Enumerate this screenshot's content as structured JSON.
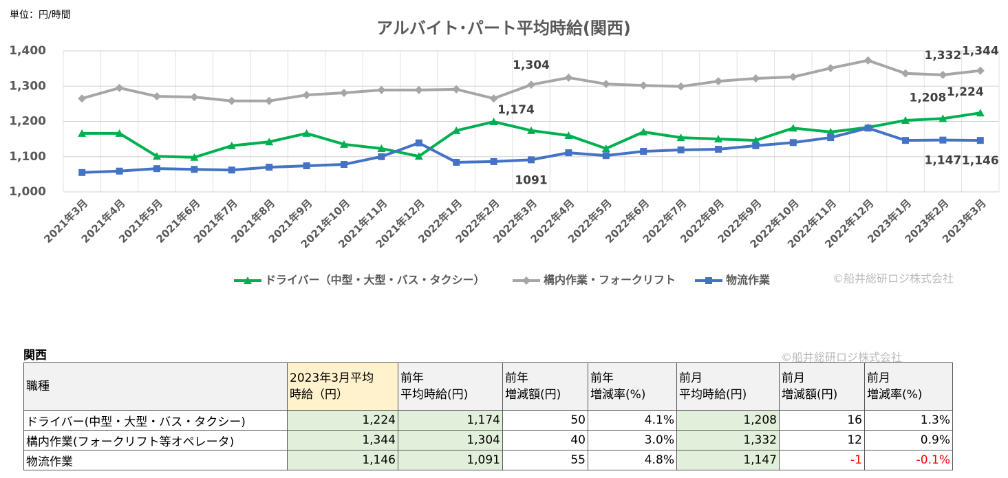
{
  "chart_data": {
    "type": "line",
    "title": "アルバイト･パート平均時給(関西)",
    "unit_note": "単位：円/時間",
    "credit": "©船井総研ロジ株式会社",
    "categories": [
      "2021年3月",
      "2021年4月",
      "2021年5月",
      "2021年6月",
      "2021年7月",
      "2021年8月",
      "2021年9月",
      "2021年10月",
      "2021年11月",
      "2021年12月",
      "2022年1月",
      "2022年2月",
      "2022年3月",
      "2022年4月",
      "2022年5月",
      "2022年6月",
      "2022年7月",
      "2022年8月",
      "2022年9月",
      "2022年10月",
      "2022年11月",
      "2022年12月",
      "2023年1月",
      "2023年2月",
      "2023年3月"
    ],
    "series": [
      {
        "name": "ドライバー（中型・大型・バス・タクシー）",
        "color": "#00b050",
        "marker": "triangle",
        "values": [
          1166,
          1166,
          1101,
          1098,
          1131,
          1142,
          1166,
          1135,
          1123,
          1101,
          1174,
          1199,
          1174,
          1160,
          1123,
          1170,
          1154,
          1150,
          1146,
          1181,
          1170,
          1183,
          1203,
          1208,
          1224
        ],
        "value_labels": [
          null,
          null,
          null,
          null,
          null,
          null,
          null,
          null,
          null,
          null,
          null,
          null,
          "1,174",
          null,
          null,
          null,
          null,
          null,
          null,
          null,
          null,
          null,
          null,
          "1,208",
          "1,224"
        ]
      },
      {
        "name": "構内作業・フォークリフト",
        "color": "#a6a6a6",
        "marker": "diamond",
        "values": [
          1265,
          1295,
          1271,
          1269,
          1258,
          1258,
          1275,
          1281,
          1289,
          1289,
          1291,
          1265,
          1304,
          1324,
          1306,
          1302,
          1299,
          1314,
          1322,
          1326,
          1351,
          1373,
          1336,
          1332,
          1344
        ],
        "value_labels": [
          null,
          null,
          null,
          null,
          null,
          null,
          null,
          null,
          null,
          null,
          null,
          null,
          "1,304",
          null,
          null,
          null,
          null,
          null,
          null,
          null,
          null,
          null,
          null,
          "1,332",
          "1,344"
        ]
      },
      {
        "name": "物流作業",
        "color": "#4472c4",
        "marker": "square",
        "values": [
          1055,
          1059,
          1066,
          1064,
          1062,
          1070,
          1074,
          1078,
          1100,
          1139,
          1084,
          1086,
          1091,
          1111,
          1103,
          1115,
          1119,
          1121,
          1131,
          1140,
          1154,
          1181,
          1146,
          1147,
          1146
        ],
        "value_labels": [
          null,
          null,
          null,
          null,
          null,
          null,
          null,
          null,
          null,
          null,
          null,
          null,
          "1091",
          null,
          null,
          null,
          null,
          null,
          null,
          null,
          null,
          null,
          null,
          "1,147",
          "1,146"
        ]
      }
    ],
    "ylim": [
      1000,
      1400
    ],
    "yticks": [
      {
        "value": 1000,
        "label": "1,000"
      },
      {
        "value": 1100,
        "label": "1,100"
      },
      {
        "value": 1200,
        "label": "1,200"
      },
      {
        "value": 1300,
        "label": "1,300"
      },
      {
        "value": 1400,
        "label": "1,400"
      }
    ],
    "grid": true
  },
  "table": {
    "title": "関西",
    "credit": "©船井総研ロジ株式会社",
    "header": [
      "職種",
      "2023年3月平均\n時給（円）",
      "前年\n平均時給(円)",
      "前年\n増減額(円)",
      "前年\n増減率(%)",
      "前月\n平均時給(円)",
      "前月\n増減額(円)",
      "前月\n増減率(%)"
    ],
    "rows": [
      [
        "ドライバー(中型・大型・バス・タクシー)",
        "1,224",
        "1,174",
        "50",
        "4.1%",
        "1,208",
        "16",
        "1.3%"
      ],
      [
        "構内作業(フォークリフト等オペレータ)",
        "1,344",
        "1,304",
        "40",
        "3.0%",
        "1,332",
        "12",
        "0.9%"
      ],
      [
        "物流作業",
        "1,146",
        "1,091",
        "55",
        "4.8%",
        "1,147",
        "-1",
        "-0.1%"
      ]
    ]
  }
}
